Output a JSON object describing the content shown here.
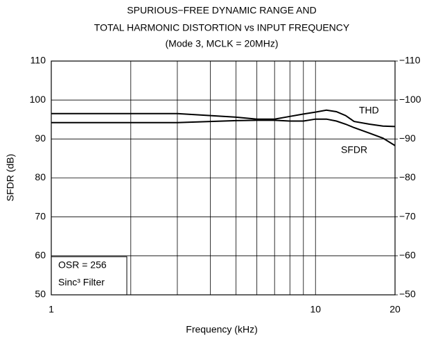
{
  "chart_data": {
    "type": "line",
    "title": [
      "SPURIOUS−FREE DYNAMIC RANGE AND",
      "TOTAL HARMONIC DISTORTION vs INPUT FREQUENCY",
      "(Mode 3, MCLK = 20MHz)"
    ],
    "xlabel": "Frequency (kHz)",
    "ylabel": "SFDR (dB)",
    "xscale": "log",
    "x": [
      1,
      2,
      3,
      4,
      5,
      6,
      7,
      8,
      9,
      10,
      11,
      12,
      13,
      14,
      16,
      18,
      20
    ],
    "series": [
      {
        "name": "SFDR",
        "color": "#000000",
        "values": [
          94.2,
          94.2,
          94.2,
          94.5,
          94.7,
          94.8,
          94.8,
          94.6,
          94.6,
          95.1,
          95.1,
          94.6,
          93.8,
          92.9,
          91.5,
          90.2,
          88.3
        ]
      },
      {
        "name": "THD",
        "color": "#000000",
        "axis": "y2",
        "values": [
          -96.5,
          -96.5,
          -96.5,
          -96,
          -95.6,
          -95.1,
          -95.1,
          -95.8,
          -96.4,
          -96.9,
          -97.4,
          -97,
          -96,
          -94.5,
          -93.8,
          -93.3,
          -93.2
        ]
      }
    ],
    "xlim": [
      1,
      20
    ],
    "xticks": [
      1,
      10,
      20
    ],
    "xminor": [
      2,
      3,
      4,
      5,
      6,
      7,
      8,
      9
    ],
    "ylim": [
      50,
      110
    ],
    "yticks": [
      50,
      60,
      70,
      80,
      90,
      100,
      110
    ],
    "y2lim": [
      -50,
      -110
    ],
    "y2ticks": [
      {
        "value": -50,
        "label": "−50"
      },
      {
        "value": -60,
        "label": "−60"
      },
      {
        "value": -70,
        "label": "−70"
      },
      {
        "value": -80,
        "label": "−80"
      },
      {
        "value": -90,
        "label": "−90"
      },
      {
        "value": -100,
        "label": "−100"
      },
      {
        "value": -110,
        "label": "−110"
      }
    ],
    "grid": true,
    "annotations": [
      "OSR = 256",
      "Sinc³ Filter"
    ]
  }
}
